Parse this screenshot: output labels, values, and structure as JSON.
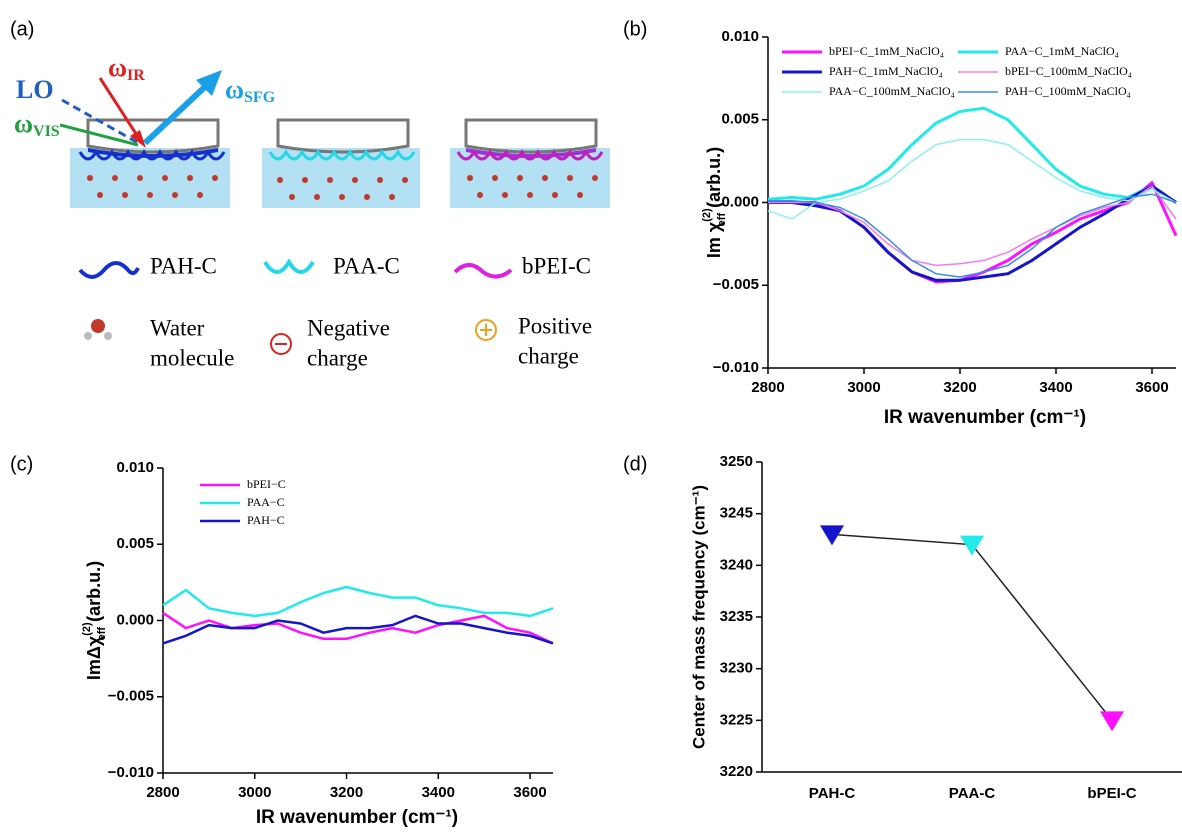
{
  "diagram": {
    "panel_label": "(a)",
    "beams": {
      "lo": "LO",
      "ir": {
        "main": "ω",
        "sub": "IR"
      },
      "sfg": {
        "main": "ω",
        "sub": "SFG"
      },
      "vis": {
        "main": "ω",
        "sub": "VIS"
      }
    },
    "legend": [
      "PAH-C",
      "PAA-C",
      "bPEI-C"
    ],
    "symbols": [
      [
        "Water",
        "molecule"
      ],
      [
        "Negative",
        "charge"
      ],
      [
        "Positive",
        "charge"
      ]
    ]
  },
  "chart_data": [
    {
      "type": "line",
      "panel_label": "(b)",
      "xlabel": "IR wavenumber (cm⁻¹)",
      "ylabel": {
        "prefix": "Im χ",
        "sup": "(2)",
        "sub": "eff",
        "suffix": " (arb.u.)"
      },
      "x": [
        2800,
        2850,
        2900,
        2950,
        3000,
        3050,
        3100,
        3150,
        3200,
        3250,
        3300,
        3350,
        3400,
        3450,
        3500,
        3550,
        3600,
        3650
      ],
      "xlim": [
        2800,
        3650
      ],
      "xticks": [
        2800,
        3000,
        3200,
        3400,
        3600
      ],
      "ylim": [
        -0.01,
        0.01
      ],
      "yticks": [
        {
          "value": -0.01,
          "label": "−0.010"
        },
        {
          "value": -0.005,
          "label": "−0.005"
        },
        {
          "value": 0,
          "label": "0.000"
        },
        0.005,
        {
          "value": 0.01,
          "label": "0.010"
        }
      ],
      "legend_columns": 2,
      "series": [
        {
          "name": "bPEI−C_1mM_NaClO₄",
          "color": "#ff10ff",
          "width": 3,
          "values": [
            0,
            0,
            0,
            -0.0005,
            -0.0015,
            -0.003,
            -0.0042,
            -0.0048,
            -0.0047,
            -0.0042,
            -0.0035,
            -0.0025,
            -0.0018,
            -0.001,
            -0.0005,
            0,
            0.0012,
            -0.002
          ]
        },
        {
          "name": "PAA−C_1mM_NaClO₄",
          "color": "#22eaea",
          "width": 3,
          "values": [
            0.0002,
            0.0003,
            0.0002,
            0.0005,
            0.001,
            0.002,
            0.0035,
            0.0048,
            0.0055,
            0.0057,
            0.005,
            0.0035,
            0.002,
            0.001,
            0.0005,
            0.0003,
            0.001,
            0
          ]
        },
        {
          "name": "PAH−C_1mM_NaClO₄",
          "color": "#1515cc",
          "width": 3,
          "values": [
            0,
            0,
            -0.0002,
            -0.0005,
            -0.0015,
            -0.003,
            -0.0042,
            -0.0047,
            -0.0047,
            -0.0045,
            -0.0043,
            -0.0035,
            -0.0025,
            -0.0015,
            -0.0007,
            0.0002,
            0.001,
            0
          ]
        },
        {
          "name": "bPEI−C_100mM_NaClO₄",
          "color": "#f07ef0",
          "width": 1.5,
          "values": [
            0,
            0,
            0,
            -0.0005,
            -0.0012,
            -0.0025,
            -0.0035,
            -0.0038,
            -0.0037,
            -0.0035,
            -0.003,
            -0.0022,
            -0.0015,
            -0.0008,
            -0.0003,
            0,
            0.001,
            -0.001
          ]
        },
        {
          "name": "PAA−C_100mM_NaClO₄",
          "color": "#8ef0f0",
          "width": 1.5,
          "values": [
            -0.0005,
            -0.001,
            0,
            0.0002,
            0.0007,
            0.0013,
            0.0025,
            0.0035,
            0.0038,
            0.0038,
            0.0035,
            0.0025,
            0.0015,
            0.0007,
            0.0003,
            0.0001,
            0.0008,
            0
          ]
        },
        {
          "name": "PAH−C_100mM_NaClO₄",
          "color": "#3a8ee6",
          "width": 1.5,
          "values": [
            0.0001,
            0.0001,
            0,
            -0.0003,
            -0.001,
            -0.0022,
            -0.0035,
            -0.0043,
            -0.0045,
            -0.0042,
            -0.0038,
            -0.0028,
            -0.0015,
            -0.0007,
            -0.0002,
            0.0003,
            0.0005,
            0
          ]
        }
      ]
    },
    {
      "type": "line",
      "panel_label": "(c)",
      "xlabel": "IR wavenumber (cm⁻¹)",
      "ylabel": {
        "prefix": "ImΔχ",
        "sup": "(2)",
        "sub": "eff",
        "suffix": " (arb.u.)"
      },
      "x": [
        2800,
        2850,
        2900,
        2950,
        3000,
        3050,
        3100,
        3150,
        3200,
        3250,
        3300,
        3350,
        3400,
        3450,
        3500,
        3550,
        3600,
        3650
      ],
      "xlim": [
        2800,
        3650
      ],
      "xticks": [
        2800,
        3000,
        3200,
        3400,
        3600
      ],
      "ylim": [
        -0.01,
        0.01
      ],
      "yticks": [
        {
          "value": -0.01,
          "label": "−0.010"
        },
        {
          "value": -0.005,
          "label": "−0.005"
        },
        {
          "value": 0,
          "label": "0.000"
        },
        0.005,
        {
          "value": 0.01,
          "label": "0.010"
        }
      ],
      "legend_columns": 1,
      "series": [
        {
          "name": "bPEI−C",
          "color": "#ff10ff",
          "width": 2.5,
          "values": [
            0.0005,
            -0.0005,
            0,
            -0.0005,
            -0.0003,
            -0.0002,
            -0.0008,
            -0.0012,
            -0.0012,
            -0.0008,
            -0.0005,
            -0.0008,
            -0.0003,
            0,
            0.0003,
            -0.0005,
            -0.0008,
            -0.0015
          ]
        },
        {
          "name": "PAA−C",
          "color": "#22eaea",
          "width": 2.5,
          "values": [
            0.001,
            0.002,
            0.0008,
            0.0005,
            0.0003,
            0.0005,
            0.0012,
            0.0018,
            0.0022,
            0.0018,
            0.0015,
            0.0015,
            0.001,
            0.0008,
            0.0005,
            0.0005,
            0.0003,
            0.0008
          ]
        },
        {
          "name": "PAH−C",
          "color": "#1515cc",
          "width": 2.5,
          "values": [
            -0.0015,
            -0.001,
            -0.0003,
            -0.0005,
            -0.0005,
            0,
            -0.0002,
            -0.0008,
            -0.0005,
            -0.0005,
            -0.0003,
            0.0003,
            -0.0002,
            -0.0002,
            -0.0005,
            -0.0008,
            -0.001,
            -0.0015
          ]
        }
      ]
    },
    {
      "type": "pointline",
      "panel_label": "(d)",
      "ylabel": "Center of mass frequency (cm⁻¹)",
      "categories": [
        "PAH-C",
        "PAA-C",
        "bPEI-C"
      ],
      "values": [
        3243,
        3242,
        3225
      ],
      "colors": [
        "#1515cc",
        "#22eaea",
        "#ff10ff"
      ],
      "line_color": "#222222",
      "ylim": [
        3220,
        3250
      ],
      "yticks": [
        3220,
        3225,
        3230,
        3235,
        3240,
        3245,
        3250
      ]
    }
  ]
}
